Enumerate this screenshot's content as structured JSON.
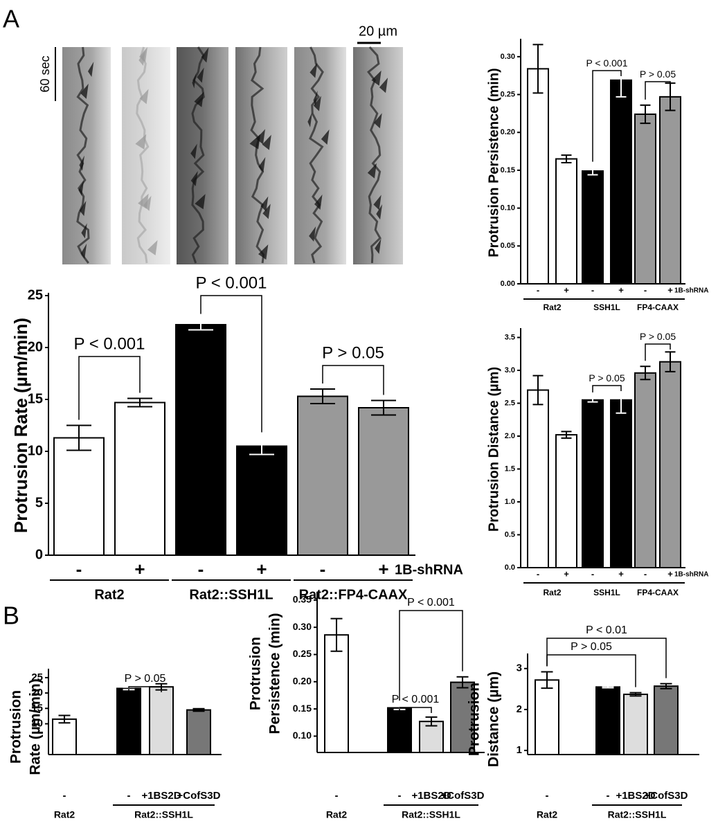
{
  "panels": {
    "a": "A",
    "b": "B"
  },
  "kymograph": {
    "scale_bar": "20 µm",
    "time_bar": "60 sec"
  },
  "chart_data": [
    {
      "type": "bar",
      "ylabel": [
        "Protrusion Rate (µm/min)"
      ],
      "categories": [
        "-",
        "+",
        "-",
        "+",
        "-",
        "+"
      ],
      "treatment_label": "1B-shRNA",
      "groups": [
        "Rat2",
        "Rat2::SSH1L",
        "Rat2::FP4-CAAX"
      ],
      "values": [
        11.3,
        14.7,
        22.2,
        10.5,
        15.3,
        14.2
      ],
      "errors": [
        1.2,
        0.4,
        0.5,
        0.8,
        0.7,
        0.7
      ],
      "colors": [
        "#ffffff",
        "#ffffff",
        "#000000",
        "#000000",
        "#999999",
        "#999999"
      ],
      "ylim": [
        0,
        25
      ],
      "yticks": [
        0,
        5,
        10,
        15,
        20,
        25
      ],
      "annotations": [
        "P < 0.001",
        "P < 0.001",
        "P > 0.05"
      ]
    },
    {
      "type": "bar",
      "ylabel": [
        "Protrusion Persistence (min)"
      ],
      "categories": [
        "-",
        "+",
        "-",
        "+",
        "-",
        "+"
      ],
      "treatment_label": "1B-shRNA",
      "groups": [
        "Rat2",
        "SSH1L",
        "FP4-CAAX"
      ],
      "values": [
        0.284,
        0.165,
        0.149,
        0.269,
        0.224,
        0.247
      ],
      "errors": [
        0.032,
        0.005,
        0.005,
        0.022,
        0.012,
        0.018
      ],
      "colors": [
        "#ffffff",
        "#ffffff",
        "#000000",
        "#000000",
        "#999999",
        "#999999"
      ],
      "ylim": [
        0,
        0.32
      ],
      "yticks": [
        {
          "value": 0,
          "label": "0.00"
        },
        {
          "value": 0.05,
          "label": "0.05"
        },
        {
          "value": 0.1,
          "label": "0.10"
        },
        {
          "value": 0.15,
          "label": "0.15"
        },
        {
          "value": 0.2,
          "label": "0.20"
        },
        {
          "value": 0.25,
          "label": "0.25"
        },
        {
          "value": 0.3,
          "label": "0.30"
        }
      ],
      "annotations": [
        "P < 0.001",
        "P > 0.05"
      ]
    },
    {
      "type": "bar",
      "ylabel": [
        "Protrusion Distance (µm)"
      ],
      "categories": [
        "-",
        "+",
        "-",
        "+",
        "-",
        "+"
      ],
      "treatment_label": "1B-shRNA",
      "groups": [
        "Rat2",
        "SSH1L",
        "FP4-CAAX"
      ],
      "values": [
        2.7,
        2.02,
        2.55,
        2.55,
        2.96,
        3.13
      ],
      "errors": [
        0.22,
        0.05,
        0.03,
        0.2,
        0.1,
        0.15
      ],
      "colors": [
        "#ffffff",
        "#ffffff",
        "#000000",
        "#000000",
        "#999999",
        "#999999"
      ],
      "ylim": [
        0,
        3.6
      ],
      "yticks": [
        {
          "value": 0,
          "label": "0.0"
        },
        {
          "value": 0.5,
          "label": "0.5"
        },
        {
          "value": 1,
          "label": "1.0"
        },
        {
          "value": 1.5,
          "label": "1.5"
        },
        {
          "value": 2,
          "label": "2.0"
        },
        {
          "value": 2.5,
          "label": "2.5"
        },
        {
          "value": 3,
          "label": "3.0"
        },
        {
          "value": 3.5,
          "label": "3.5"
        }
      ],
      "annotations": [
        "P > 0.05",
        "P > 0.05"
      ]
    },
    {
      "type": "bar",
      "ylabel": [
        "Protrusion",
        "Rate (µm/min)"
      ],
      "categories": [
        "-",
        "-",
        "+1BS2D",
        "+CofS3D"
      ],
      "groups": [
        "Rat2",
        "Rat2::SSH1L"
      ],
      "values": [
        11.5,
        21.5,
        22,
        14.5
      ],
      "errors": [
        1.2,
        0.4,
        1.0,
        0.4
      ],
      "colors": [
        "#ffffff",
        "#000000",
        "#dddddd",
        "#777777"
      ],
      "ylim": [
        0,
        27
      ],
      "yticks": [
        10,
        15,
        20,
        25
      ],
      "annotations": [
        "P > 0.05"
      ]
    },
    {
      "type": "bar",
      "ylabel": [
        "Protrusion",
        "Persistence (min)"
      ],
      "categories": [
        "-",
        "-",
        "+1BS2D",
        "+CofS3D"
      ],
      "groups": [
        "Rat2",
        "Rat2::SSH1L"
      ],
      "values": [
        0.286,
        0.152,
        0.127,
        0.199
      ],
      "errors": [
        0.03,
        0.003,
        0.008,
        0.01
      ],
      "colors": [
        "#ffffff",
        "#000000",
        "#dddddd",
        "#777777"
      ],
      "ylim": [
        0.07,
        0.36
      ],
      "yticks": [
        {
          "value": 0.1,
          "label": "0.10"
        },
        {
          "value": 0.15,
          "label": "0.15"
        },
        {
          "value": 0.2,
          "label": "0.20"
        },
        {
          "value": 0.25,
          "label": "0.25"
        },
        {
          "value": 0.3,
          "label": "0.30"
        },
        {
          "value": 0.35,
          "label": "0.35"
        }
      ],
      "annotations": [
        "P < 0.001",
        "P < 0.001"
      ]
    },
    {
      "type": "bar",
      "ylabel": [
        "Protrusion",
        "Distance (µm)"
      ],
      "categories": [
        "-",
        "-",
        "+1BS2D",
        "+CofS3D"
      ],
      "groups": [
        "Rat2",
        "Rat2::SSH1L"
      ],
      "values": [
        2.72,
        2.55,
        2.37,
        2.57
      ],
      "errors": [
        0.2,
        0.02,
        0.04,
        0.06
      ],
      "colors": [
        "#ffffff",
        "#000000",
        "#dddddd",
        "#777777"
      ],
      "ylim": [
        0.9,
        3.3
      ],
      "yticks": [
        1,
        2,
        3
      ],
      "annotations": [
        "P < 0.01",
        "P > 0.05"
      ]
    }
  ]
}
